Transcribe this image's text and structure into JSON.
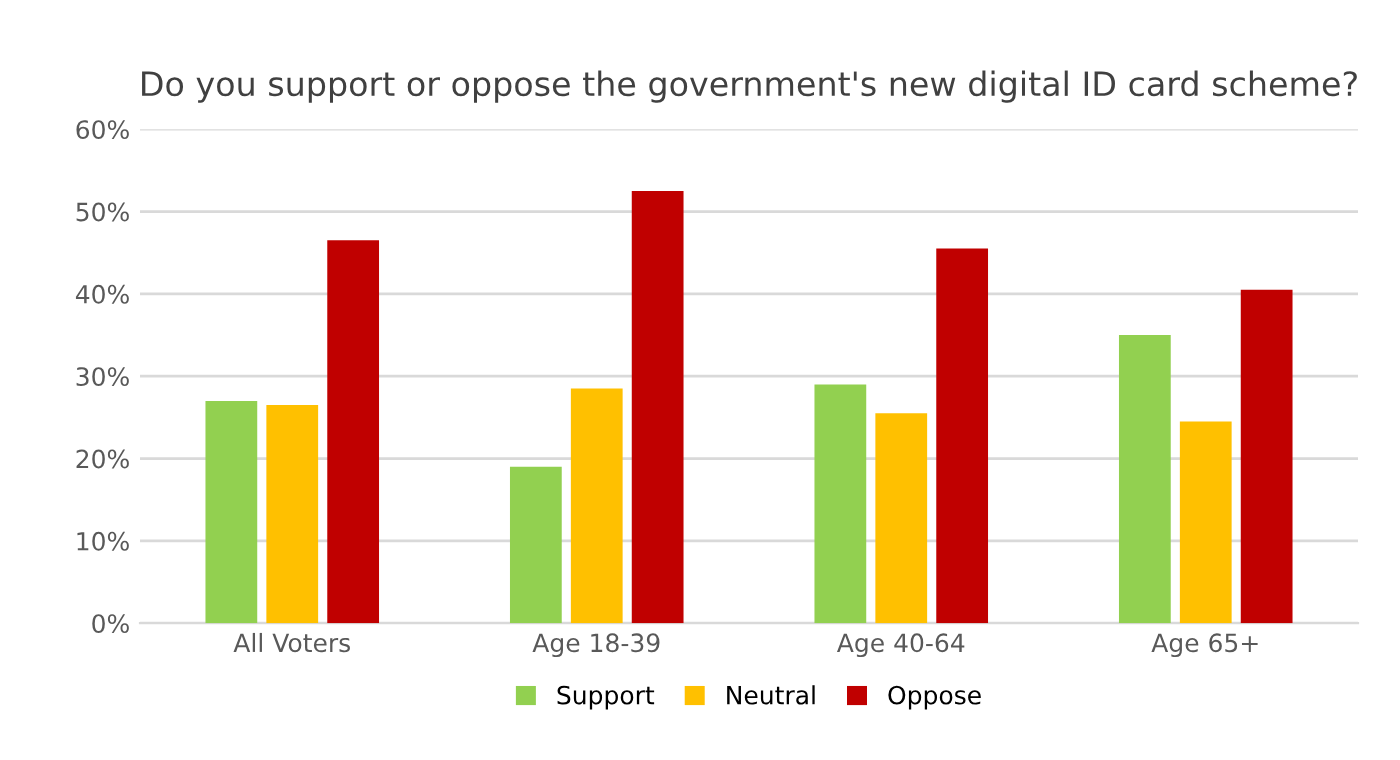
{
  "chart_data": {
    "type": "bar",
    "title": "Do you support or oppose the government's new digital ID card scheme?",
    "categories": [
      "All Voters",
      "Age 18-39",
      "Age 40-64",
      "Age 65+"
    ],
    "series": [
      {
        "name": "Support",
        "color": "#92d050",
        "values": [
          27,
          19,
          29,
          35
        ]
      },
      {
        "name": "Neutral",
        "color": "#ffc000",
        "values": [
          26.5,
          28.5,
          25.5,
          24.5
        ]
      },
      {
        "name": "Oppose",
        "color": "#c00000",
        "values": [
          46.5,
          52.5,
          45.5,
          40.5
        ]
      }
    ],
    "ylim": [
      0,
      60
    ],
    "yticks": [
      {
        "value": 0,
        "label": "0%"
      },
      {
        "value": 10,
        "label": "10%"
      },
      {
        "value": 20,
        "label": "20%"
      },
      {
        "value": 30,
        "label": "30%"
      },
      {
        "value": 40,
        "label": "40%"
      },
      {
        "value": 50,
        "label": "50%"
      },
      {
        "value": 60,
        "label": "60%"
      }
    ],
    "grid": "y",
    "legend": "bottom"
  }
}
